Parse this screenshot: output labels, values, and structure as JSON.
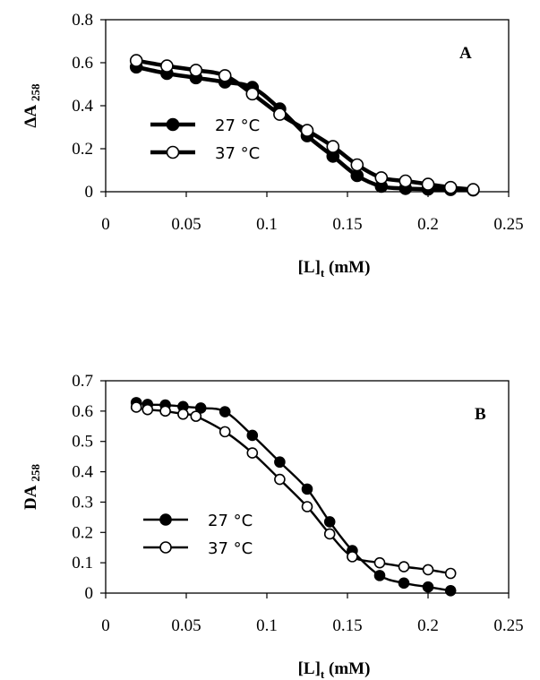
{
  "chart_data": [
    {
      "type": "line",
      "panel_label": "A",
      "xlabel": {
        "main": "[L]",
        "sub": "t",
        "rest": " (mM)"
      },
      "ylabel": {
        "main": "ΔA",
        "sub": "258"
      },
      "xlim": [
        0,
        0.25
      ],
      "ylim": [
        0,
        0.8
      ],
      "xticks": [
        "0",
        "0.05",
        "0.1",
        "0.15",
        "0.2",
        "0.25"
      ],
      "yticks": [
        "0",
        "0.2",
        "0.4",
        "0.6",
        "0.8"
      ],
      "xtick_values": [
        0,
        0.05,
        0.1,
        0.15,
        0.2,
        0.25
      ],
      "ytick_values": [
        0,
        0.2,
        0.4,
        0.6,
        0.8
      ],
      "grid": false,
      "legend_position": "center-left",
      "series": [
        {
          "name": "27 °C",
          "marker": "filled",
          "x": [
            0.019,
            0.038,
            0.056,
            0.074,
            0.091,
            0.108,
            0.125,
            0.141,
            0.156,
            0.171,
            0.186,
            0.2,
            0.214,
            0.228
          ],
          "y": [
            0.58,
            0.55,
            0.53,
            0.51,
            0.485,
            0.385,
            0.26,
            0.165,
            0.075,
            0.025,
            0.015,
            0.012,
            0.01,
            0.008
          ]
        },
        {
          "name": "37 °C",
          "marker": "open",
          "x": [
            0.019,
            0.038,
            0.056,
            0.074,
            0.091,
            0.108,
            0.125,
            0.141,
            0.156,
            0.171,
            0.186,
            0.2,
            0.214,
            0.228
          ],
          "y": [
            0.61,
            0.585,
            0.565,
            0.54,
            0.455,
            0.36,
            0.285,
            0.21,
            0.125,
            0.065,
            0.05,
            0.035,
            0.02,
            0.01
          ]
        }
      ]
    },
    {
      "type": "line",
      "panel_label": "B",
      "xlabel": {
        "main": "[L]",
        "sub": "t",
        "rest": " (mM)"
      },
      "ylabel": {
        "main": "DA",
        "sub": "258"
      },
      "xlim": [
        0,
        0.25
      ],
      "ylim": [
        0,
        0.7
      ],
      "xticks": [
        "0",
        "0.05",
        "0.1",
        "0.15",
        "0.2",
        "0.25"
      ],
      "yticks": [
        "0",
        "0.1",
        "0.2",
        "0.3",
        "0.4",
        "0.5",
        "0.6",
        "0.7"
      ],
      "xtick_values": [
        0,
        0.05,
        0.1,
        0.15,
        0.2,
        0.25
      ],
      "ytick_values": [
        0,
        0.1,
        0.2,
        0.3,
        0.4,
        0.5,
        0.6,
        0.7
      ],
      "grid": false,
      "legend_position": "center-left",
      "series": [
        {
          "name": "27 °C",
          "marker": "filled",
          "x": [
            0.019,
            0.026,
            0.037,
            0.048,
            0.059,
            0.074,
            0.091,
            0.108,
            0.125,
            0.139,
            0.153,
            0.17,
            0.185,
            0.2,
            0.214
          ],
          "y": [
            0.628,
            0.622,
            0.62,
            0.615,
            0.61,
            0.598,
            0.52,
            0.432,
            0.343,
            0.235,
            0.14,
            0.058,
            0.033,
            0.02,
            0.008
          ]
        },
        {
          "name": "37 °C",
          "marker": "open",
          "x": [
            0.019,
            0.026,
            0.037,
            0.048,
            0.056,
            0.074,
            0.091,
            0.108,
            0.125,
            0.139,
            0.153,
            0.17,
            0.185,
            0.2,
            0.214
          ],
          "y": [
            0.613,
            0.605,
            0.6,
            0.59,
            0.583,
            0.532,
            0.462,
            0.375,
            0.285,
            0.195,
            0.12,
            0.1,
            0.087,
            0.077,
            0.065
          ]
        }
      ]
    }
  ]
}
